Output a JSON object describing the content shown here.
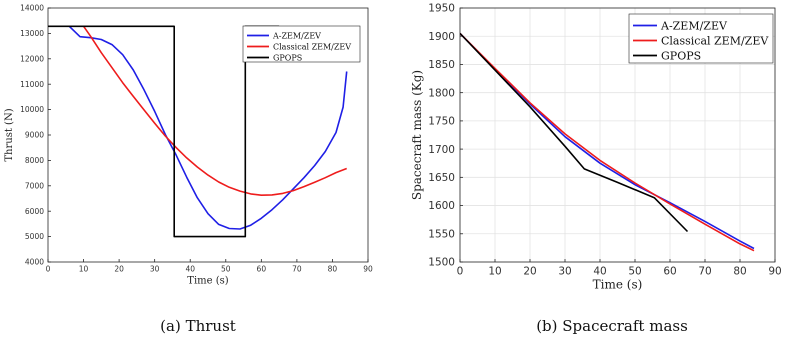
{
  "chart_data": [
    {
      "type": "line",
      "caption": "(a) Thrust",
      "title": "",
      "xlabel": "Time (s)",
      "ylabel": "Thrust (N)",
      "xlim": [
        0,
        90
      ],
      "ylim": [
        4000,
        14000
      ],
      "xticks": [
        "0",
        "10",
        "20",
        "30",
        "40",
        "50",
        "60",
        "70",
        "80",
        "90"
      ],
      "yticks": [
        "4000",
        "5000",
        "6000",
        "7000",
        "8000",
        "9000",
        "10000",
        "11000",
        "12000",
        "13000",
        "14000"
      ],
      "grid": false,
      "legend_position": "top-right",
      "series": [
        {
          "name": "A-ZEM/ZEV",
          "color": "#1f1fe6",
          "x": [
            6,
            9,
            12,
            15,
            18,
            21,
            24,
            27,
            30,
            33,
            36,
            39,
            42,
            45,
            48,
            51,
            54,
            57,
            60,
            63,
            66,
            69,
            72,
            75,
            78,
            81,
            83,
            84
          ],
          "y": [
            13280,
            12870,
            12830,
            12760,
            12560,
            12160,
            11560,
            10780,
            9930,
            9020,
            8220,
            7340,
            6530,
            5900,
            5480,
            5320,
            5300,
            5450,
            5720,
            6060,
            6450,
            6880,
            7320,
            7800,
            8350,
            9100,
            10100,
            11500
          ]
        },
        {
          "name": "Classical ZEM/ZEV",
          "color": "#ee1c1c",
          "x": [
            10,
            12,
            15,
            18,
            21,
            24,
            27,
            30,
            33,
            36,
            39,
            42,
            45,
            48,
            51,
            54,
            57,
            60,
            63,
            66,
            69,
            72,
            75,
            78,
            81,
            84
          ],
          "y": [
            13280,
            12880,
            12240,
            11650,
            11060,
            10520,
            9990,
            9460,
            8960,
            8510,
            8100,
            7740,
            7420,
            7150,
            6940,
            6790,
            6680,
            6630,
            6640,
            6700,
            6810,
            6970,
            7140,
            7320,
            7520,
            7680
          ]
        },
        {
          "name": "GPOPS",
          "color": "#000000",
          "x": [
            0,
            35.5,
            35.5,
            55.5,
            55.5,
            65
          ],
          "y": [
            13280,
            13280,
            5000,
            5000,
            13280,
            13280
          ]
        }
      ]
    },
    {
      "type": "line",
      "caption": "(b) Spacecraft mass",
      "title": "",
      "xlabel": "Time (s)",
      "ylabel": "Spacecraft mass (Kg)",
      "xlim": [
        0,
        90
      ],
      "ylim": [
        1500,
        1950
      ],
      "xticks": [
        "0",
        "10",
        "20",
        "30",
        "40",
        "50",
        "60",
        "70",
        "80",
        "90"
      ],
      "yticks": [
        "1500",
        "1550",
        "1600",
        "1650",
        "1700",
        "1750",
        "1800",
        "1850",
        "1900",
        "1950"
      ],
      "grid": true,
      "legend_position": "top-right",
      "series": [
        {
          "name": "A-ZEM/ZEV",
          "color": "#1f1fe6",
          "x": [
            0,
            10,
            20,
            30,
            40,
            50,
            60,
            70,
            80,
            84
          ],
          "y": [
            1905,
            1842,
            1780,
            1722,
            1675,
            1637,
            1605,
            1572,
            1537,
            1524
          ]
        },
        {
          "name": "Classical ZEM/ZEV",
          "color": "#ee1c1c",
          "x": [
            0,
            10,
            20,
            30,
            40,
            50,
            60,
            70,
            80,
            84
          ],
          "y": [
            1905,
            1843,
            1782,
            1727,
            1680,
            1640,
            1603,
            1567,
            1532,
            1520
          ]
        },
        {
          "name": "GPOPS",
          "color": "#000000",
          "x": [
            0,
            10,
            20,
            30,
            35.5,
            45,
            55.5,
            65
          ],
          "y": [
            1905,
            1840,
            1775,
            1705,
            1665,
            1641,
            1614,
            1554
          ]
        }
      ]
    }
  ]
}
